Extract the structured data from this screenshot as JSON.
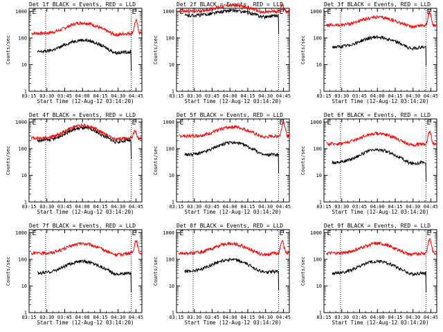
{
  "chart_data": [
    {
      "type": "line",
      "title": "Det 1f BLACK = Events, RED = LLD",
      "xlabel": "Start Time (12-Aug-12 03:14:20)",
      "ylabel": "Counts/sec",
      "xticks": [
        "03:15",
        "03:30",
        "03:45",
        "04:00",
        "04:15",
        "04:30",
        "04:45"
      ],
      "yticks": [
        "1",
        "10",
        "100",
        "1000"
      ],
      "yscale": "log",
      "ylim": [
        1,
        1000
      ],
      "xlim_min": [
        15,
        110
      ],
      "markers": [
        {
          "label": "E",
          "at": 17
        },
        {
          "label": "E",
          "at": 101
        }
      ],
      "vlines": [
        29,
        101
      ],
      "series": [
        {
          "color": "#ff0000",
          "base": 150,
          "peak": 2.5,
          "peak_at": 60,
          "width": 11,
          "start": 17,
          "end": 110,
          "flare": {
            "at": 105,
            "factor": 3
          }
        },
        {
          "color": "#000000",
          "base": 30,
          "peak": 2.8,
          "peak_at": 60,
          "width": 12,
          "start": 22,
          "end": 101,
          "drop_at": 101
        }
      ]
    },
    {
      "type": "line",
      "title": "Det 2f BLACK = Events, RED = LLD",
      "xlabel": "Start Time (12-Aug-12 03:14:20)",
      "ylabel": "Counts/sec",
      "xticks": [
        "03:15",
        "03:30",
        "03:45",
        "04:00",
        "04:15",
        "04:30",
        "04:45"
      ],
      "yticks": [
        "1",
        "10",
        "100",
        "1000"
      ],
      "yscale": "log",
      "ylim": [
        1,
        1000
      ],
      "xlim_min": [
        15,
        110
      ],
      "markers": [
        {
          "label": "E",
          "at": 17
        },
        {
          "label": "E",
          "at": 101
        }
      ],
      "vlines": [
        29,
        101
      ],
      "series": [
        {
          "color": "#ff0000",
          "base": 1000,
          "peak": 1.7,
          "peak_at": 62,
          "width": 12,
          "start": 17,
          "end": 110,
          "flare": {
            "at": 104,
            "factor": 1.8
          }
        },
        {
          "color": "#000000",
          "base": 700,
          "peak": 1.5,
          "peak_at": 62,
          "width": 12,
          "start": 22,
          "end": 101,
          "drop_at": 101
        }
      ]
    },
    {
      "type": "line",
      "title": "Det 3f BLACK = Events, RED = LLD",
      "xlabel": "Start Time (12-Aug-12 03:14:20)",
      "ylabel": "Counts/sec",
      "xticks": [
        "03:15",
        "03:30",
        "03:45",
        "04:00",
        "04:15",
        "04:30",
        "04:45"
      ],
      "yticks": [
        "1",
        "10",
        "100",
        "1000"
      ],
      "yscale": "log",
      "ylim": [
        1,
        1000
      ],
      "xlim_min": [
        15,
        110
      ],
      "markers": [
        {
          "label": "E",
          "at": 17
        },
        {
          "label": "E",
          "at": 101
        }
      ],
      "vlines": [
        29,
        101
      ],
      "series": [
        {
          "color": "#ff0000",
          "base": 300,
          "peak": 2.0,
          "peak_at": 60,
          "width": 12,
          "start": 17,
          "end": 110,
          "flare": {
            "at": 104,
            "factor": 3
          }
        },
        {
          "color": "#000000",
          "base": 45,
          "peak": 2.4,
          "peak_at": 60,
          "width": 12,
          "start": 22,
          "end": 101,
          "drop_at": 101
        }
      ]
    },
    {
      "type": "line",
      "title": "Det 4f BLACK = Events, RED = LLD",
      "xlabel": "Start Time (12-Aug-12 03:14:20)",
      "ylabel": "Counts/sec",
      "xticks": [
        "03:15",
        "03:30",
        "03:45",
        "04:00",
        "04:15",
        "04:30",
        "04:45"
      ],
      "yticks": [
        "1",
        "10",
        "100",
        "1000"
      ],
      "yscale": "log",
      "ylim": [
        1,
        1000
      ],
      "xlim_min": [
        15,
        110
      ],
      "markers": [
        {
          "label": "E",
          "at": 17
        },
        {
          "label": "E",
          "at": 101
        }
      ],
      "vlines": [
        29,
        101
      ],
      "series": [
        {
          "color": "#ff0000",
          "base": 250,
          "peak": 3.0,
          "peak_at": 60,
          "width": 11,
          "start": 17,
          "end": 110,
          "flare": {
            "at": 104,
            "factor": 1.8
          }
        },
        {
          "color": "#000000",
          "base": 200,
          "peak": 3.0,
          "peak_at": 60,
          "width": 11,
          "start": 22,
          "end": 101,
          "drop_at": 101
        }
      ]
    },
    {
      "type": "line",
      "title": "Det 5f BLACK = Events, RED = LLD",
      "xlabel": "Start Time (12-Aug-12 03:14:20)",
      "ylabel": "Counts/sec",
      "xticks": [
        "03:15",
        "03:30",
        "03:45",
        "04:00",
        "04:15",
        "04:30",
        "04:45"
      ],
      "yticks": [
        "1",
        "10",
        "100",
        "1000"
      ],
      "yscale": "log",
      "ylim": [
        1,
        1000
      ],
      "xlim_min": [
        15,
        110
      ],
      "markers": [
        {
          "label": "E",
          "at": 17
        },
        {
          "label": "E",
          "at": 101
        }
      ],
      "vlines": [
        29,
        101
      ],
      "series": [
        {
          "color": "#ff0000",
          "base": 300,
          "peak": 2.2,
          "peak_at": 62,
          "width": 11,
          "start": 17,
          "end": 110,
          "flare": {
            "at": 105,
            "factor": 3.5
          }
        },
        {
          "color": "#000000",
          "base": 60,
          "peak": 2.8,
          "peak_at": 62,
          "width": 12,
          "start": 22,
          "end": 101,
          "drop_at": 101
        }
      ]
    },
    {
      "type": "line",
      "title": "Det 6f BLACK = Events, RED = LLD",
      "xlabel": "Start Time (12-Aug-12 03:14:20)",
      "ylabel": "Counts/sec",
      "xticks": [
        "03:15",
        "03:30",
        "03:45",
        "04:00",
        "04:15",
        "04:30",
        "04:45"
      ],
      "yticks": [
        "1",
        "10",
        "100",
        "1000"
      ],
      "yscale": "log",
      "ylim": [
        1,
        1000
      ],
      "xlim_min": [
        15,
        110
      ],
      "markers": [
        {
          "label": "E",
          "at": 17
        },
        {
          "label": "E",
          "at": 101
        }
      ],
      "vlines": [
        29,
        101
      ],
      "series": [
        {
          "color": "#ff0000",
          "base": 150,
          "peak": 2.5,
          "peak_at": 60,
          "width": 12,
          "start": 17,
          "end": 110,
          "flare": {
            "at": 104,
            "factor": 3
          }
        },
        {
          "color": "#000000",
          "base": 30,
          "peak": 3.0,
          "peak_at": 60,
          "width": 12,
          "start": 22,
          "end": 101,
          "drop_at": 101
        }
      ]
    },
    {
      "type": "line",
      "title": "Det 7f BLACK = Events, RED = LLD",
      "xlabel": "Start Time (12-Aug-12 03:14:20)",
      "ylabel": "Counts/sec",
      "xticks": [
        "03:15",
        "03:30",
        "03:45",
        "04:00",
        "04:15",
        "04:30",
        "04:45"
      ],
      "yticks": [
        "1",
        "10",
        "100",
        "1000"
      ],
      "yscale": "log",
      "ylim": [
        1,
        1000
      ],
      "xlim_min": [
        15,
        110
      ],
      "markers": [
        {
          "label": "E",
          "at": 17
        },
        {
          "label": "E",
          "at": 101
        }
      ],
      "vlines": [
        29,
        101
      ],
      "series": [
        {
          "color": "#ff0000",
          "base": 170,
          "peak": 2.3,
          "peak_at": 60,
          "width": 11,
          "start": 17,
          "end": 110,
          "flare": {
            "at": 105,
            "factor": 3
          }
        },
        {
          "color": "#000000",
          "base": 30,
          "peak": 2.8,
          "peak_at": 60,
          "width": 12,
          "start": 22,
          "end": 101,
          "drop_at": 101
        }
      ]
    },
    {
      "type": "line",
      "title": "Det 8f BLACK = Events, RED = LLD",
      "xlabel": "Start Time (12-Aug-12 03:14:20)",
      "ylabel": "Counts/sec",
      "xticks": [
        "03:15",
        "03:30",
        "03:45",
        "04:00",
        "04:15",
        "04:30",
        "04:45"
      ],
      "yticks": [
        "1",
        "10",
        "100",
        "1000"
      ],
      "yscale": "log",
      "ylim": [
        1,
        1000
      ],
      "xlim_min": [
        15,
        110
      ],
      "markers": [
        {
          "label": "E",
          "at": 17
        },
        {
          "label": "E",
          "at": 101
        }
      ],
      "vlines": [
        29,
        101
      ],
      "series": [
        {
          "color": "#ff0000",
          "base": 170,
          "peak": 2.3,
          "peak_at": 60,
          "width": 11,
          "start": 17,
          "end": 110,
          "flare": {
            "at": 104,
            "factor": 3
          }
        },
        {
          "color": "#000000",
          "base": 35,
          "peak": 2.8,
          "peak_at": 60,
          "width": 12,
          "start": 22,
          "end": 101,
          "drop_at": 101
        }
      ]
    },
    {
      "type": "line",
      "title": "Det 9f BLACK = Events, RED = LLD",
      "xlabel": "Start Time (12-Aug-12 03:14:20)",
      "ylabel": "Counts/sec",
      "xticks": [
        "03:15",
        "03:30",
        "03:45",
        "04:00",
        "04:15",
        "04:30",
        "04:45"
      ],
      "yticks": [
        "1",
        "10",
        "100",
        "1000"
      ],
      "yscale": "log",
      "ylim": [
        1,
        1000
      ],
      "xlim_min": [
        15,
        110
      ],
      "markers": [
        {
          "label": "E",
          "at": 17
        },
        {
          "label": "E",
          "at": 101
        }
      ],
      "vlines": [
        29,
        101
      ],
      "series": [
        {
          "color": "#ff0000",
          "base": 170,
          "peak": 2.3,
          "peak_at": 60,
          "width": 11,
          "start": 17,
          "end": 110,
          "flare": {
            "at": 104,
            "factor": 3.5
          }
        },
        {
          "color": "#000000",
          "base": 30,
          "peak": 2.8,
          "peak_at": 60,
          "width": 12,
          "start": 22,
          "end": 101,
          "drop_at": 101
        }
      ]
    }
  ]
}
